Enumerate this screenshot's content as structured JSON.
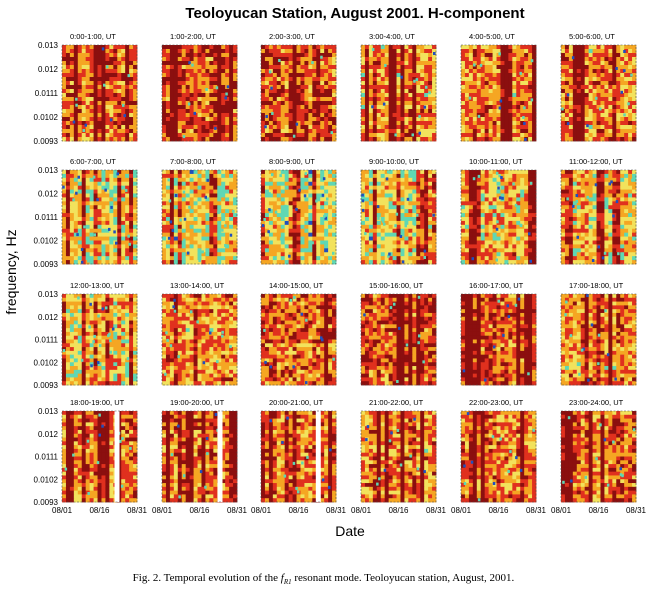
{
  "chart_data": {
    "type": "heatmap",
    "title": "Teoloyucan Station, August 2001. H-component",
    "xlabel": "Date",
    "ylabel": "frequency, Hz",
    "yticks": [
      "0.013",
      "0.012",
      "0.0111",
      "0.0102",
      "0.0093"
    ],
    "ylim": [
      0.0093,
      0.013
    ],
    "xticks": [
      "08/01",
      "08/16",
      "08/31"
    ],
    "colors": {
      "low": "#1f4fbf",
      "mid_low": "#5fd7b4",
      "mid": "#f2e25c",
      "mid_high": "#f5a623",
      "high": "#e0301e",
      "peak": "#8b0f0f"
    },
    "panels": [
      {
        "label": "0:00-1:00, UT",
        "intensity": 0.8,
        "gaps": []
      },
      {
        "label": "1:00-2:00, UT",
        "intensity": 0.85,
        "gaps": []
      },
      {
        "label": "2:00-3:00, UT",
        "intensity": 0.85,
        "gaps": []
      },
      {
        "label": "3:00-4:00, UT",
        "intensity": 0.7,
        "gaps": []
      },
      {
        "label": "4:00-5:00, UT",
        "intensity": 0.72,
        "gaps": []
      },
      {
        "label": "5:00-6:00, UT",
        "intensity": 0.72,
        "gaps": []
      },
      {
        "label": "6:00-7:00, UT",
        "intensity": 0.5,
        "gaps": []
      },
      {
        "label": "7:00-8:00, UT",
        "intensity": 0.48,
        "gaps": []
      },
      {
        "label": "8:00-9:00, UT",
        "intensity": 0.4,
        "gaps": []
      },
      {
        "label": "9:00-10:00, UT",
        "intensity": 0.45,
        "gaps": []
      },
      {
        "label": "10:00-11:00, UT",
        "intensity": 0.55,
        "gaps": []
      },
      {
        "label": "11:00-12:00, UT",
        "intensity": 0.6,
        "gaps": []
      },
      {
        "label": "12:00-13:00, UT",
        "intensity": 0.55,
        "gaps": []
      },
      {
        "label": "13:00-14:00, UT",
        "intensity": 0.65,
        "gaps": []
      },
      {
        "label": "14:00-15:00, UT",
        "intensity": 0.8,
        "gaps": []
      },
      {
        "label": "15:00-16:00, UT",
        "intensity": 0.88,
        "gaps": []
      },
      {
        "label": "16:00-17:00, UT",
        "intensity": 0.88,
        "gaps": []
      },
      {
        "label": "17:00-18:00, UT",
        "intensity": 0.72,
        "gaps": []
      },
      {
        "label": "18:00-19:00, UT",
        "intensity": 0.78,
        "gaps": [
          0.7
        ]
      },
      {
        "label": "19:00-20:00, UT",
        "intensity": 0.75,
        "gaps": [
          0.74
        ]
      },
      {
        "label": "20:00-21:00, UT",
        "intensity": 0.75,
        "gaps": [
          0.73
        ]
      },
      {
        "label": "21:00-22:00, UT",
        "intensity": 0.78,
        "gaps": []
      },
      {
        "label": "22:00-23:00, UT",
        "intensity": 0.78,
        "gaps": []
      },
      {
        "label": "23:00-24:00, UT",
        "intensity": 0.78,
        "gaps": []
      }
    ]
  },
  "caption": {
    "prefix": "Fig. 2. Temporal evolution of the ",
    "symbol": "f",
    "subscript": "R1",
    "suffix": " resonant mode. Teoloyucan station, August, 2001."
  }
}
